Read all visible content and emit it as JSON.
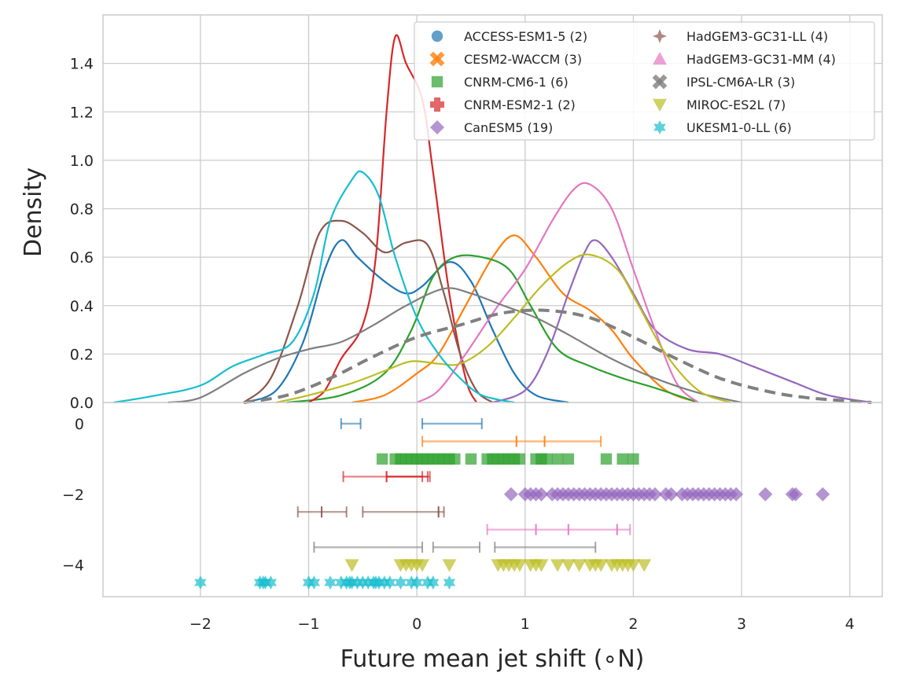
{
  "chart_data": {
    "type": "line",
    "xlabel": "Future mean jet shift (∘N)",
    "ylabel": "Density",
    "xlim": [
      -2.9,
      4.3
    ],
    "ylim_density": [
      0,
      1.6
    ],
    "ylim_strip": [
      -4.9,
      0.6
    ],
    "x_ticks": [
      -2,
      -1,
      0,
      1,
      2,
      3,
      4
    ],
    "density_ticks": [
      "0.0",
      "0.2",
      "0.4",
      "0.6",
      "0.8",
      "1.0",
      "1.2",
      "1.4"
    ],
    "strip_ticks": [
      "0",
      "−2",
      "−4"
    ],
    "grid": true,
    "legend_position": "top-right",
    "x_tick_labels": [
      "−2",
      "−1",
      "0",
      "1",
      "2",
      "3",
      "4"
    ],
    "series": [
      {
        "name": "ACCESS-ESM1-5 (2)",
        "color": "#1f77b4",
        "marker": "circle",
        "density": [
          [
            -1.6,
            0
          ],
          [
            -1.3,
            0.05
          ],
          [
            -1.05,
            0.25
          ],
          [
            -0.85,
            0.55
          ],
          [
            -0.7,
            0.67
          ],
          [
            -0.55,
            0.6
          ],
          [
            -0.3,
            0.5
          ],
          [
            -0.1,
            0.45
          ],
          [
            0.05,
            0.48
          ],
          [
            0.3,
            0.58
          ],
          [
            0.5,
            0.5
          ],
          [
            0.7,
            0.3
          ],
          [
            0.9,
            0.12
          ],
          [
            1.1,
            0.03
          ],
          [
            1.4,
            0
          ]
        ],
        "strip_row": 0,
        "strip_mode": "errorbar",
        "errorbars": [
          [
            -0.7,
            -0.52
          ],
          [
            0.05,
            0.6
          ]
        ]
      },
      {
        "name": "CESM2-WACCM (3)",
        "color": "#ff7f0e",
        "marker": "x",
        "density": [
          [
            -0.6,
            0
          ],
          [
            -0.3,
            0.03
          ],
          [
            0,
            0.12
          ],
          [
            0.2,
            0.2
          ],
          [
            0.45,
            0.4
          ],
          [
            0.7,
            0.6
          ],
          [
            0.9,
            0.69
          ],
          [
            1.1,
            0.6
          ],
          [
            1.35,
            0.45
          ],
          [
            1.6,
            0.38
          ],
          [
            1.8,
            0.3
          ],
          [
            2.0,
            0.18
          ],
          [
            2.3,
            0.05
          ],
          [
            2.6,
            0
          ]
        ],
        "strip_row": -0.5,
        "strip_mode": "errorbar",
        "errorbars": [
          [
            0.05,
            0.92
          ],
          [
            0.92,
            1.18
          ],
          [
            1.18,
            1.7
          ]
        ]
      },
      {
        "name": "CNRM-CM6-1 (6)",
        "color": "#2ca02c",
        "marker": "square",
        "density": [
          [
            -1.2,
            0
          ],
          [
            -0.7,
            0.03
          ],
          [
            -0.3,
            0.12
          ],
          [
            -0.05,
            0.3
          ],
          [
            0.15,
            0.52
          ],
          [
            0.35,
            0.6
          ],
          [
            0.6,
            0.6
          ],
          [
            0.85,
            0.55
          ],
          [
            1.05,
            0.4
          ],
          [
            1.3,
            0.22
          ],
          [
            1.6,
            0.15
          ],
          [
            1.9,
            0.1
          ],
          [
            2.2,
            0.06
          ],
          [
            2.6,
            0
          ]
        ],
        "strip_row": -1,
        "strip_mode": "points",
        "points": [
          -0.32,
          -0.2,
          -0.15,
          -0.1,
          -0.05,
          0.0,
          0.05,
          0.1,
          0.15,
          0.2,
          0.25,
          0.3,
          0.35,
          0.5,
          0.65,
          0.7,
          0.75,
          0.8,
          0.85,
          0.9,
          0.95,
          1.1,
          1.15,
          1.2,
          1.3,
          1.4,
          1.75,
          1.9,
          2.0
        ]
      },
      {
        "name": "CNRM-ESM2-1 (2)",
        "color": "#d62728",
        "marker": "plus",
        "density": [
          [
            -1.0,
            0
          ],
          [
            -0.85,
            0.05
          ],
          [
            -0.7,
            0.18
          ],
          [
            -0.5,
            0.32
          ],
          [
            -0.38,
            0.6
          ],
          [
            -0.28,
            1.2
          ],
          [
            -0.2,
            1.51
          ],
          [
            -0.1,
            1.4
          ],
          [
            0.05,
            1.25
          ],
          [
            0.15,
            0.95
          ],
          [
            0.3,
            0.45
          ],
          [
            0.45,
            0.1
          ],
          [
            0.55,
            0
          ]
        ],
        "strip_row": -1.5,
        "strip_mode": "errorbar",
        "errorbars": [
          [
            -0.68,
            0.12
          ],
          [
            -0.28,
            0.1
          ],
          [
            -0.28,
            0.05
          ]
        ]
      },
      {
        "name": "CanESM5 (19)",
        "color": "#9467bd",
        "marker": "diamond",
        "density": [
          [
            0.7,
            0
          ],
          [
            1.0,
            0.05
          ],
          [
            1.2,
            0.2
          ],
          [
            1.4,
            0.45
          ],
          [
            1.55,
            0.62
          ],
          [
            1.65,
            0.67
          ],
          [
            1.8,
            0.6
          ],
          [
            2.0,
            0.45
          ],
          [
            2.2,
            0.3
          ],
          [
            2.5,
            0.22
          ],
          [
            2.8,
            0.2
          ],
          [
            3.1,
            0.15
          ],
          [
            3.5,
            0.08
          ],
          [
            3.8,
            0.03
          ],
          [
            4.2,
            0
          ]
        ],
        "strip_row": -2,
        "strip_mode": "points",
        "points": [
          0.87,
          1.0,
          1.05,
          1.1,
          1.15,
          1.25,
          1.3,
          1.35,
          1.4,
          1.45,
          1.5,
          1.55,
          1.6,
          1.65,
          1.7,
          1.75,
          1.8,
          1.85,
          1.9,
          1.95,
          2.0,
          2.05,
          2.1,
          2.15,
          2.2,
          2.3,
          2.35,
          2.45,
          2.5,
          2.55,
          2.6,
          2.65,
          2.7,
          2.75,
          2.8,
          2.85,
          2.9,
          2.95,
          3.22,
          3.47,
          3.5,
          3.75
        ]
      },
      {
        "name": "HadGEM3-GC31-LL (4)",
        "color": "#8c564b",
        "marker": "star4",
        "density": [
          [
            -1.6,
            0
          ],
          [
            -1.35,
            0.1
          ],
          [
            -1.1,
            0.4
          ],
          [
            -0.9,
            0.7
          ],
          [
            -0.7,
            0.75
          ],
          [
            -0.5,
            0.7
          ],
          [
            -0.3,
            0.62
          ],
          [
            -0.1,
            0.66
          ],
          [
            0.1,
            0.65
          ],
          [
            0.25,
            0.45
          ],
          [
            0.4,
            0.2
          ],
          [
            0.55,
            0.05
          ],
          [
            0.7,
            0
          ]
        ],
        "strip_row": -2.5,
        "strip_mode": "errorbar",
        "errorbars": [
          [
            -1.1,
            -0.88
          ],
          [
            -0.88,
            -0.65
          ],
          [
            -0.5,
            0.2
          ],
          [
            0.2,
            0.25
          ]
        ]
      },
      {
        "name": "HadGEM3-GC31-MM (4)",
        "color": "#e377c2",
        "marker": "triangle",
        "density": [
          [
            0.0,
            0
          ],
          [
            0.2,
            0.05
          ],
          [
            0.45,
            0.2
          ],
          [
            0.75,
            0.4
          ],
          [
            1.0,
            0.55
          ],
          [
            1.25,
            0.75
          ],
          [
            1.45,
            0.88
          ],
          [
            1.6,
            0.9
          ],
          [
            1.8,
            0.8
          ],
          [
            2.0,
            0.55
          ],
          [
            2.2,
            0.3
          ],
          [
            2.4,
            0.08
          ],
          [
            2.6,
            0
          ]
        ],
        "strip_row": -3,
        "strip_mode": "errorbar",
        "errorbars": [
          [
            0.65,
            1.1
          ],
          [
            1.1,
            1.4
          ],
          [
            1.4,
            1.85
          ],
          [
            1.85,
            1.97
          ]
        ]
      },
      {
        "name": "IPSL-CM6A-LR (3)",
        "color": "#7f7f7f",
        "marker": "x",
        "density": [
          [
            -2.3,
            0
          ],
          [
            -2.0,
            0.02
          ],
          [
            -1.6,
            0.12
          ],
          [
            -1.3,
            0.18
          ],
          [
            -1.0,
            0.22
          ],
          [
            -0.7,
            0.25
          ],
          [
            -0.4,
            0.32
          ],
          [
            -0.1,
            0.4
          ],
          [
            0.25,
            0.47
          ],
          [
            0.5,
            0.45
          ],
          [
            0.8,
            0.4
          ],
          [
            1.1,
            0.35
          ],
          [
            1.4,
            0.28
          ],
          [
            1.8,
            0.18
          ],
          [
            2.2,
            0.1
          ],
          [
            2.6,
            0.04
          ],
          [
            3.0,
            0
          ]
        ],
        "strip_row": -3.5,
        "strip_mode": "errorbar",
        "errorbars": [
          [
            -0.95,
            0.05
          ],
          [
            0.15,
            0.58
          ],
          [
            0.72,
            1.65
          ]
        ]
      },
      {
        "name": "MIROC-ES2L (7)",
        "color": "#bcbd22",
        "marker": "triangle-down",
        "density": [
          [
            -1.3,
            0
          ],
          [
            -1.0,
            0.03
          ],
          [
            -0.6,
            0.08
          ],
          [
            -0.3,
            0.13
          ],
          [
            -0.05,
            0.17
          ],
          [
            0.2,
            0.16
          ],
          [
            0.4,
            0.16
          ],
          [
            0.65,
            0.23
          ],
          [
            0.9,
            0.35
          ],
          [
            1.15,
            0.48
          ],
          [
            1.4,
            0.58
          ],
          [
            1.6,
            0.61
          ],
          [
            1.85,
            0.55
          ],
          [
            2.05,
            0.4
          ],
          [
            2.3,
            0.2
          ],
          [
            2.6,
            0.05
          ],
          [
            2.9,
            0
          ]
        ],
        "strip_row": -4,
        "strip_mode": "points",
        "points": [
          -0.6,
          -0.15,
          -0.1,
          -0.05,
          0.0,
          0.05,
          0.3,
          0.75,
          0.8,
          0.85,
          0.9,
          0.95,
          1.05,
          1.1,
          1.15,
          1.3,
          1.4,
          1.5,
          1.6,
          1.65,
          1.7,
          1.8,
          1.85,
          1.9,
          1.95,
          2.0,
          2.1
        ]
      },
      {
        "name": "UKESM1-0-LL (6)",
        "color": "#17becf",
        "marker": "star",
        "density": [
          [
            -2.8,
            0
          ],
          [
            -2.4,
            0.03
          ],
          [
            -2.0,
            0.07
          ],
          [
            -1.7,
            0.15
          ],
          [
            -1.4,
            0.2
          ],
          [
            -1.15,
            0.25
          ],
          [
            -0.95,
            0.45
          ],
          [
            -0.8,
            0.75
          ],
          [
            -0.6,
            0.92
          ],
          [
            -0.5,
            0.95
          ],
          [
            -0.35,
            0.85
          ],
          [
            -0.2,
            0.6
          ],
          [
            0.0,
            0.35
          ],
          [
            0.2,
            0.2
          ],
          [
            0.4,
            0.1
          ],
          [
            0.6,
            0.03
          ],
          [
            0.9,
            0
          ]
        ],
        "strip_row": -4.5,
        "strip_mode": "points",
        "points": [
          -2.0,
          -1.45,
          -1.42,
          -1.4,
          -1.35,
          -1.0,
          -0.95,
          -0.8,
          -0.7,
          -0.65,
          -0.62,
          -0.6,
          -0.55,
          -0.5,
          -0.45,
          -0.4,
          -0.38,
          -0.35,
          -0.3,
          -0.25,
          -0.15,
          -0.05,
          0.0,
          0.1,
          0.15,
          0.3
        ]
      }
    ],
    "ensemble": {
      "color": "#808080",
      "style": "dashed",
      "density": [
        [
          -1.6,
          0
        ],
        [
          -1.2,
          0.03
        ],
        [
          -0.8,
          0.1
        ],
        [
          -0.4,
          0.19
        ],
        [
          0.0,
          0.27
        ],
        [
          0.4,
          0.32
        ],
        [
          0.8,
          0.37
        ],
        [
          1.2,
          0.38
        ],
        [
          1.6,
          0.35
        ],
        [
          2.0,
          0.27
        ],
        [
          2.4,
          0.18
        ],
        [
          2.8,
          0.1
        ],
        [
          3.2,
          0.05
        ],
        [
          3.6,
          0.02
        ],
        [
          4.2,
          0
        ]
      ]
    }
  }
}
